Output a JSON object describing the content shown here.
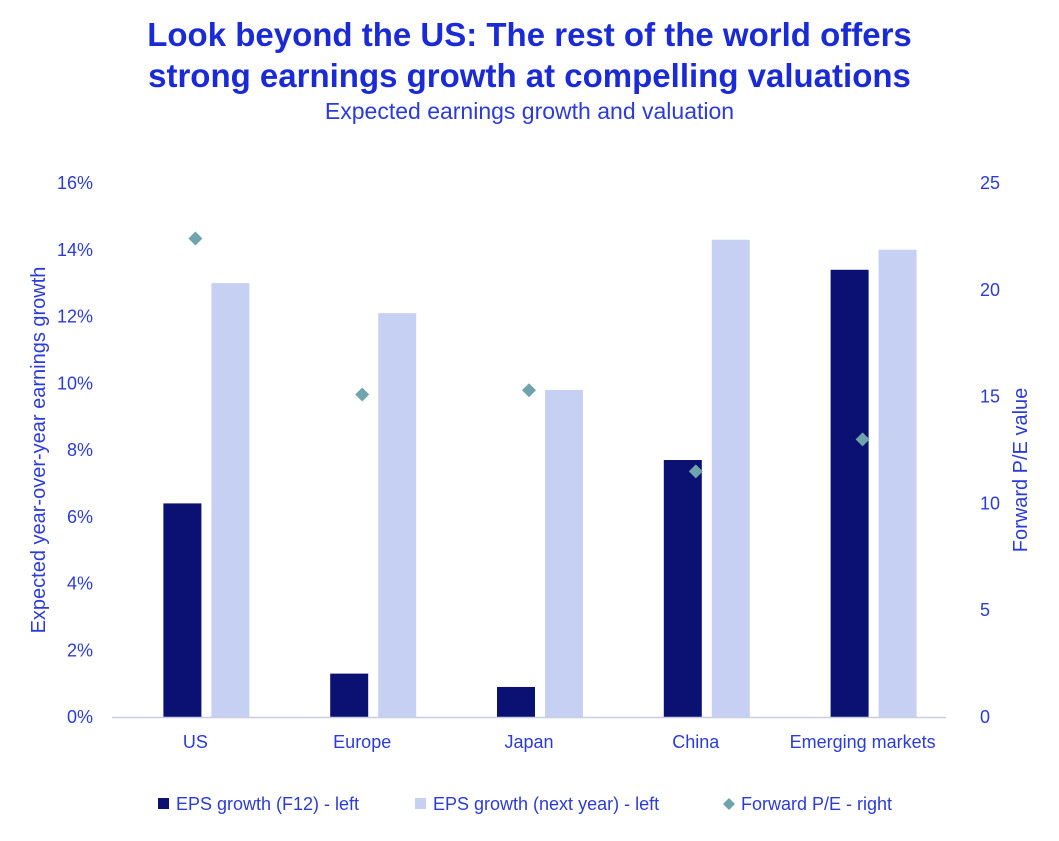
{
  "title_line1": "Look beyond the US: The rest of the world offers",
  "title_line2": "strong earnings growth at compelling valuations",
  "subtitle": "Expected earnings growth and valuation",
  "chart_data": {
    "type": "bar",
    "categories": [
      "US",
      "Europe",
      "Japan",
      "China",
      "Emerging markets"
    ],
    "series": [
      {
        "name": "EPS growth (F12) - left",
        "kind": "bar",
        "axis": "left",
        "color": "#0a1172",
        "values": [
          6.4,
          1.3,
          0.9,
          7.7,
          13.4
        ]
      },
      {
        "name": "EPS growth (next year) - left",
        "kind": "bar",
        "axis": "left",
        "color": "#c5d0f3",
        "values": [
          13.0,
          12.1,
          9.8,
          14.3,
          14.0
        ]
      },
      {
        "name": "Forward P/E - right",
        "kind": "marker",
        "axis": "right",
        "color": "#6fa4ac",
        "values": [
          22.4,
          15.1,
          15.3,
          11.5,
          13.0
        ]
      }
    ],
    "y_left": {
      "label": "Expected year-over-year earnings growth",
      "min": 0,
      "max": 16,
      "step": 2,
      "ticks": [
        "0%",
        "2%",
        "4%",
        "6%",
        "8%",
        "10%",
        "12%",
        "14%",
        "16%"
      ]
    },
    "y_right": {
      "label": "Forward P/E value",
      "min": 0,
      "max": 25,
      "step": 5,
      "ticks": [
        "0",
        "5",
        "10",
        "15",
        "20",
        "25"
      ]
    },
    "grid": false,
    "legend_position": "bottom"
  }
}
